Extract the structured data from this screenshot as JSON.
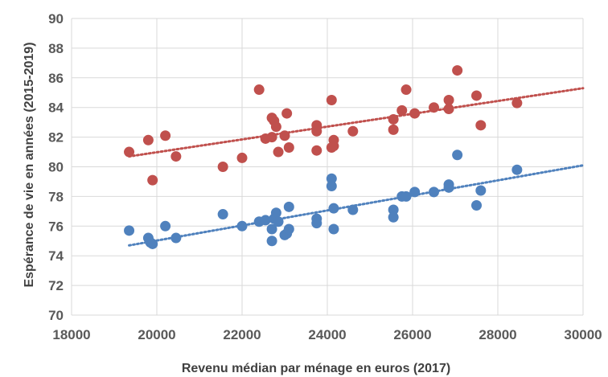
{
  "chart_data": {
    "type": "scatter",
    "title": "",
    "xlabel": "Revenu médian par ménage en euros (2017)",
    "ylabel": "Espérance de vie en années (2015-2019)",
    "xlim": [
      18000,
      30000
    ],
    "ylim": [
      70,
      90
    ],
    "xticks": [
      "18000",
      "20000",
      "22000",
      "24000",
      "26000",
      "28000",
      "30000"
    ],
    "yticks": [
      "70",
      "72",
      "74",
      "76",
      "78",
      "80",
      "82",
      "84",
      "86",
      "88",
      "90"
    ],
    "grid": true,
    "legend": "none",
    "colors": {
      "red": "#c0504d",
      "blue": "#4f81bd"
    },
    "series": [
      {
        "color": "#c0504d",
        "trendline": {
          "x": [
            19350,
            30000
          ],
          "y": [
            80.7,
            85.3
          ]
        },
        "points": [
          [
            19350,
            81.0
          ],
          [
            19800,
            81.8
          ],
          [
            19900,
            79.1
          ],
          [
            20200,
            82.1
          ],
          [
            20450,
            80.7
          ],
          [
            21550,
            80.0
          ],
          [
            22000,
            80.6
          ],
          [
            22400,
            85.2
          ],
          [
            22550,
            81.9
          ],
          [
            22700,
            83.3
          ],
          [
            22700,
            82.0
          ],
          [
            22750,
            83.1
          ],
          [
            22800,
            82.7
          ],
          [
            22850,
            81.0
          ],
          [
            23000,
            82.1
          ],
          [
            23050,
            83.6
          ],
          [
            23100,
            81.3
          ],
          [
            23750,
            82.8
          ],
          [
            23750,
            82.4
          ],
          [
            23750,
            81.1
          ],
          [
            24100,
            84.5
          ],
          [
            24100,
            81.3
          ],
          [
            24150,
            81.8
          ],
          [
            24150,
            81.4
          ],
          [
            24600,
            82.4
          ],
          [
            25550,
            83.2
          ],
          [
            25550,
            82.5
          ],
          [
            25750,
            83.8
          ],
          [
            25850,
            85.2
          ],
          [
            26050,
            83.6
          ],
          [
            26500,
            84.0
          ],
          [
            26850,
            84.5
          ],
          [
            26850,
            83.9
          ],
          [
            27050,
            86.5
          ],
          [
            27500,
            84.8
          ],
          [
            27600,
            82.8
          ],
          [
            28450,
            84.3
          ]
        ]
      },
      {
        "color": "#4f81bd",
        "trendline": {
          "x": [
            19350,
            30000
          ],
          "y": [
            74.7,
            80.1
          ]
        },
        "points": [
          [
            19350,
            75.7
          ],
          [
            19800,
            75.2
          ],
          [
            19850,
            74.9
          ],
          [
            19900,
            74.8
          ],
          [
            20200,
            76.0
          ],
          [
            20450,
            75.2
          ],
          [
            21550,
            76.8
          ],
          [
            22000,
            76.0
          ],
          [
            22400,
            76.3
          ],
          [
            22550,
            76.4
          ],
          [
            22700,
            75.0
          ],
          [
            22700,
            75.8
          ],
          [
            22750,
            76.5
          ],
          [
            22800,
            76.9
          ],
          [
            22850,
            76.3
          ],
          [
            23000,
            75.4
          ],
          [
            23050,
            75.5
          ],
          [
            23100,
            75.8
          ],
          [
            23100,
            77.3
          ],
          [
            23750,
            76.5
          ],
          [
            23750,
            76.2
          ],
          [
            24100,
            79.2
          ],
          [
            24100,
            78.7
          ],
          [
            24150,
            77.2
          ],
          [
            24150,
            75.8
          ],
          [
            24600,
            77.1
          ],
          [
            25550,
            77.1
          ],
          [
            25550,
            76.6
          ],
          [
            25750,
            78.0
          ],
          [
            25850,
            78.0
          ],
          [
            26050,
            78.3
          ],
          [
            26500,
            78.3
          ],
          [
            26850,
            78.8
          ],
          [
            26850,
            78.6
          ],
          [
            27050,
            80.8
          ],
          [
            27500,
            77.4
          ],
          [
            27600,
            78.4
          ],
          [
            28450,
            79.8
          ]
        ]
      }
    ]
  }
}
